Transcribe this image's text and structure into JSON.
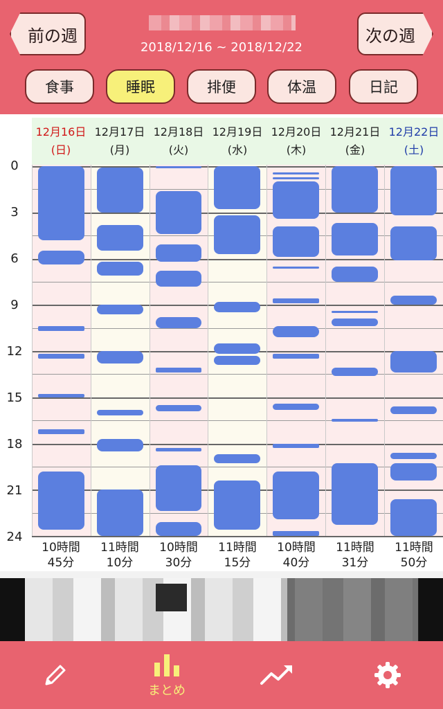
{
  "header": {
    "prev_label": "前の週",
    "next_label": "次の週",
    "date_range": "2018/12/16 ~ 2018/12/22"
  },
  "tabs": [
    {
      "label": "食事",
      "active": false
    },
    {
      "label": "睡眠",
      "active": true
    },
    {
      "label": "排便",
      "active": false
    },
    {
      "label": "体温",
      "active": false
    },
    {
      "label": "日記",
      "active": false
    }
  ],
  "days": [
    {
      "date": "12月16日",
      "weekday": "(日)",
      "total_h": "10時間",
      "total_m": "45分"
    },
    {
      "date": "12月17日",
      "weekday": "(月)",
      "total_h": "11時間",
      "total_m": "10分"
    },
    {
      "date": "12月18日",
      "weekday": "(火)",
      "total_h": "10時間",
      "total_m": "30分"
    },
    {
      "date": "12月19日",
      "weekday": "(水)",
      "total_h": "11時間",
      "total_m": "15分"
    },
    {
      "date": "12月20日",
      "weekday": "(木)",
      "total_h": "10時間",
      "total_m": "40分"
    },
    {
      "date": "12月21日",
      "weekday": "(金)",
      "total_h": "11時間",
      "total_m": "31分"
    },
    {
      "date": "12月22日",
      "weekday": "(土)",
      "total_h": "11時間",
      "total_m": "50分"
    }
  ],
  "y_axis": [
    "0",
    "3",
    "6",
    "9",
    "12",
    "15",
    "18",
    "21",
    "24"
  ],
  "sleep_data": [
    [
      [
        0,
        4.8
      ],
      [
        5.5,
        6.4
      ],
      [
        10.4,
        10.7
      ],
      [
        12.2,
        12.5
      ],
      [
        14.8,
        15.0
      ],
      [
        17.1,
        17.4
      ],
      [
        19.8,
        23.6
      ]
    ],
    [
      [
        0.1,
        3.0
      ],
      [
        3.8,
        5.5
      ],
      [
        6.2,
        7.1
      ],
      [
        9.0,
        9.6
      ],
      [
        12.0,
        12.8
      ],
      [
        15.8,
        16.2
      ],
      [
        17.7,
        18.5
      ],
      [
        21.0,
        24.0
      ]
    ],
    [
      [
        0,
        0.1
      ],
      [
        1.6,
        4.4
      ],
      [
        5.1,
        6.2
      ],
      [
        6.8,
        7.8
      ],
      [
        9.8,
        10.5
      ],
      [
        13.1,
        13.4
      ],
      [
        15.5,
        15.9
      ],
      [
        18.3,
        18.5
      ],
      [
        19.4,
        22.4
      ],
      [
        23.1,
        24.0
      ]
    ],
    [
      [
        0,
        2.8
      ],
      [
        3.2,
        5.7
      ],
      [
        8.8,
        9.5
      ],
      [
        11.5,
        12.2
      ],
      [
        12.3,
        12.9
      ],
      [
        18.7,
        19.3
      ],
      [
        20.4,
        23.6
      ]
    ],
    [
      [
        0.4,
        0.5
      ],
      [
        0.7,
        0.8
      ],
      [
        1.0,
        3.4
      ],
      [
        3.9,
        5.9
      ],
      [
        6.5,
        6.6
      ],
      [
        8.6,
        8.9
      ],
      [
        10.4,
        11.1
      ],
      [
        12.2,
        12.5
      ],
      [
        15.4,
        15.8
      ],
      [
        18.0,
        18.3
      ],
      [
        19.8,
        22.9
      ],
      [
        23.7,
        24.0
      ]
    ],
    [
      [
        0,
        3.0
      ],
      [
        3.7,
        5.8
      ],
      [
        6.5,
        7.5
      ],
      [
        9.4,
        9.5
      ],
      [
        9.9,
        10.4
      ],
      [
        13.1,
        13.6
      ],
      [
        16.4,
        16.6
      ],
      [
        19.3,
        23.3
      ]
    ],
    [
      [
        0,
        3.2
      ],
      [
        3.9,
        6.1
      ],
      [
        8.4,
        9.0
      ],
      [
        12.0,
        13.4
      ],
      [
        15.6,
        16.1
      ],
      [
        18.6,
        19.0
      ],
      [
        19.3,
        20.4
      ],
      [
        21.6,
        24.0
      ]
    ]
  ],
  "bottom_nav": [
    {
      "icon": "pencil-icon",
      "label": ""
    },
    {
      "icon": "bar-chart-icon",
      "label": "まとめ",
      "active": true
    },
    {
      "icon": "trend-icon",
      "label": ""
    },
    {
      "icon": "gear-icon",
      "label": ""
    }
  ],
  "colors": {
    "accent": "#e8636f",
    "sleep_block": "#5b7fdf",
    "active_tab": "#f7f07a"
  }
}
